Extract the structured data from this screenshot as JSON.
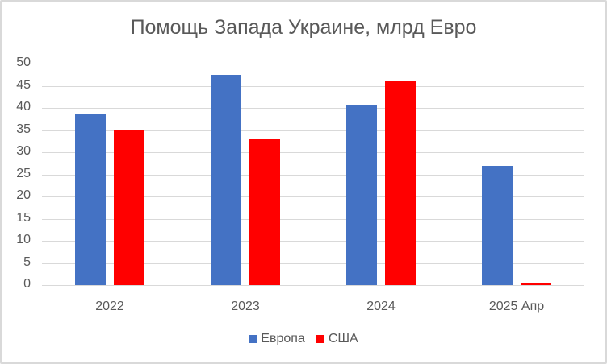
{
  "chart_data": {
    "type": "bar",
    "title": "Помощь Запада Украине, млрд Евро",
    "categories": [
      "2022",
      "2023",
      "2024",
      "2025 Апр"
    ],
    "series": [
      {
        "name": "Европа",
        "color": "#4472C4",
        "values": [
          38.7,
          47.5,
          40.5,
          27.0
        ]
      },
      {
        "name": "США",
        "color": "#FF0000",
        "values": [
          35.0,
          33.0,
          46.2,
          0.5
        ]
      }
    ],
    "xlabel": "",
    "ylabel": "",
    "ylim": [
      0,
      50
    ],
    "yticks": [
      "0",
      "5",
      "10",
      "15",
      "20",
      "25",
      "30",
      "35",
      "40",
      "45",
      "50"
    ],
    "grid": true,
    "legend_position": "bottom"
  }
}
